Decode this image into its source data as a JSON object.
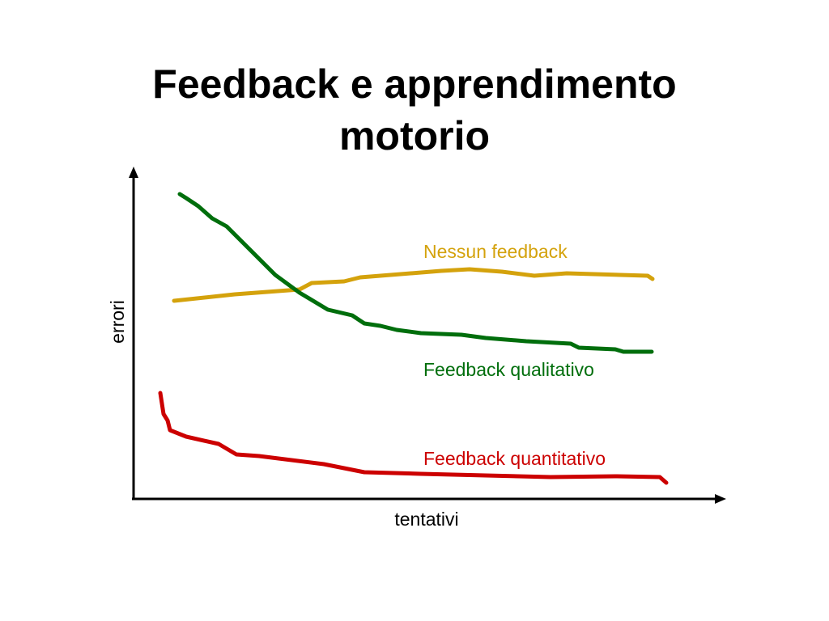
{
  "title_lines": [
    "Feedback e apprendimento",
    "motorio"
  ],
  "y_axis_label": "errori",
  "x_axis_label": "tentativi",
  "curve_labels": [
    "Nessun feedback",
    "Feedback qualitativo",
    "Feedback quantitativo"
  ]
}
